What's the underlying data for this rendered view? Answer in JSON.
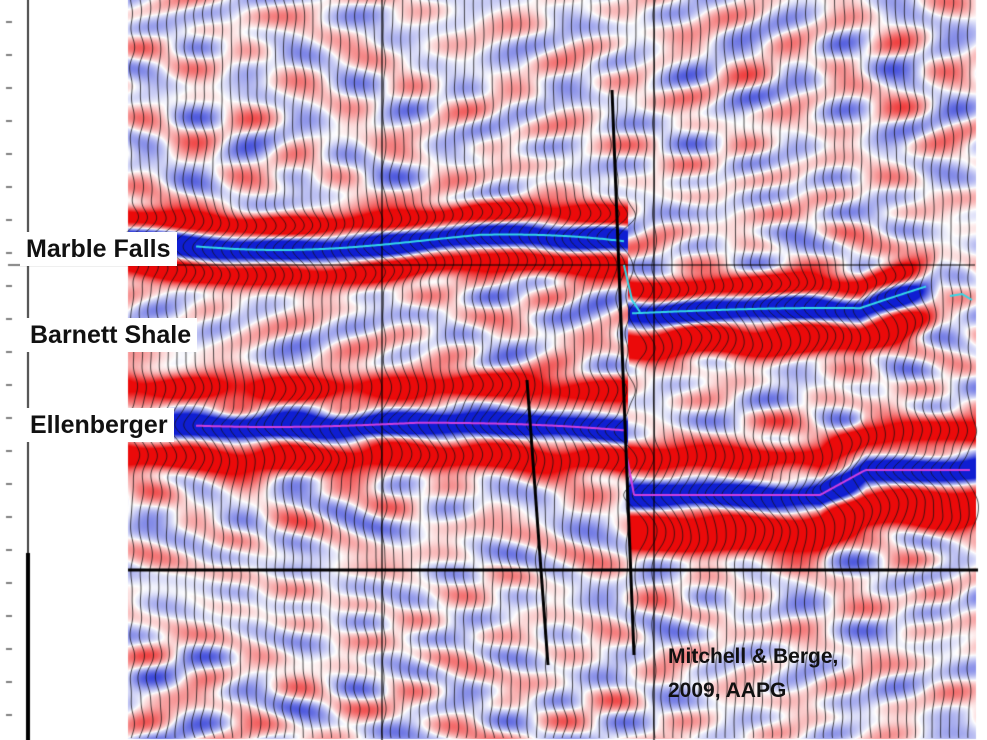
{
  "horizons": [
    {
      "id": "marble-falls",
      "label": "Marble Falls",
      "color": "#35d8e8"
    },
    {
      "id": "barnett-shale",
      "label": "Barnett Shale"
    },
    {
      "id": "ellenberger",
      "label": "Ellenberger",
      "color": "#d040e0"
    }
  ],
  "citation": {
    "line1": "Mitchell & Berge,",
    "line2": "2009, AAPG"
  },
  "colors": {
    "positive_amplitude": "#ee1010",
    "negative_amplitude": "#1020c8",
    "wiggle_trace": "#111111",
    "fault": "#000000"
  }
}
